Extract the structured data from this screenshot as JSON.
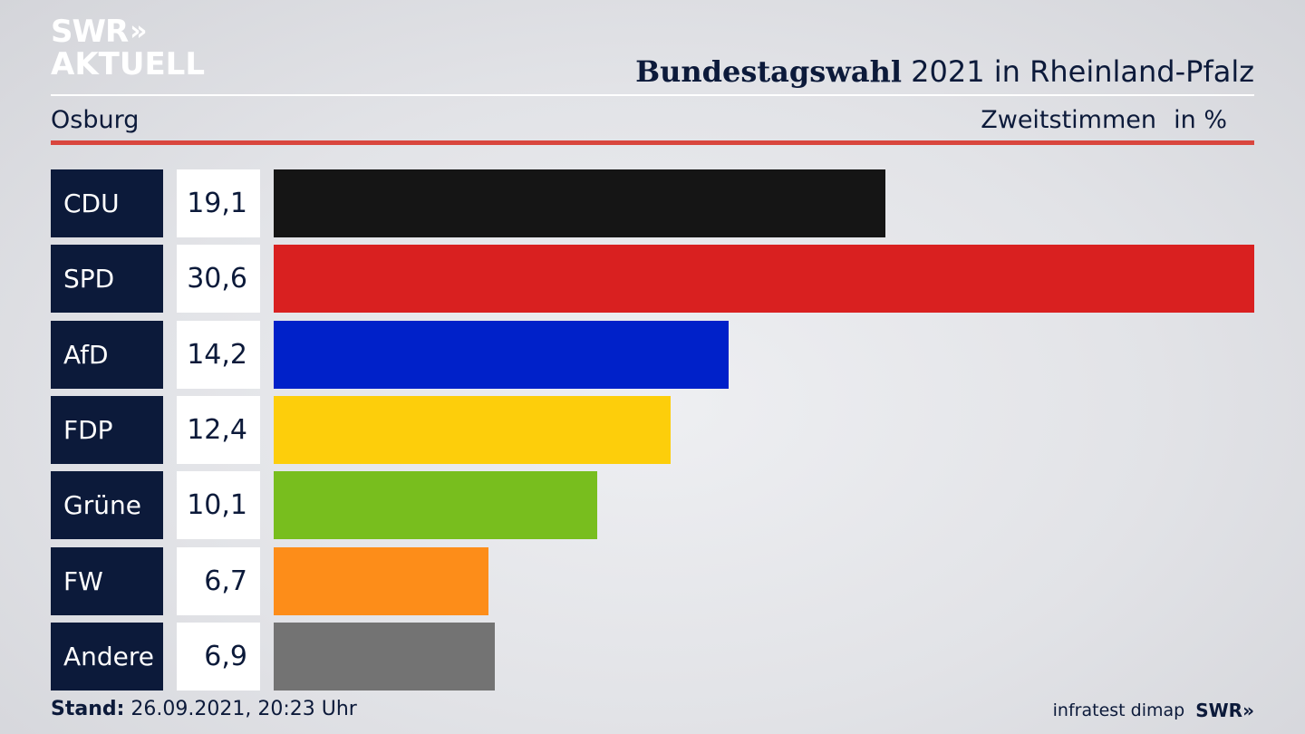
{
  "brand": {
    "line1": "SWR",
    "arrows": "»",
    "line2": "AKTUELL"
  },
  "header": {
    "title_bold": "Bundestagswahl",
    "title_rest": " 2021 in Rheinland-Pfalz",
    "region": "Osburg",
    "vote_type": "Zweitstimmen",
    "unit": "in %"
  },
  "colors": {
    "CDU": "#151515",
    "SPD": "#d92020",
    "AfD": "#0021c9",
    "FDP": "#fdce0b",
    "Grüne": "#78be1e",
    "FW": "#fd8d19",
    "Andere": "#737373"
  },
  "chart_data": {
    "type": "bar",
    "orientation": "horizontal",
    "categories": [
      "CDU",
      "SPD",
      "AfD",
      "FDP",
      "Grüne",
      "FW",
      "Andere"
    ],
    "values": [
      19.1,
      30.6,
      14.2,
      12.4,
      10.1,
      6.7,
      6.9
    ],
    "value_labels": [
      "19,1",
      "30,6",
      "14,2",
      "12,4",
      "10,1",
      "6,7",
      "6,9"
    ],
    "xlim": [
      0,
      30.6
    ]
  },
  "footer": {
    "stand_label": "Stand:",
    "stand_value": " 26.09.2021, 20:23 Uhr",
    "source": "infratest dimap",
    "source_logo": "SWR»"
  }
}
